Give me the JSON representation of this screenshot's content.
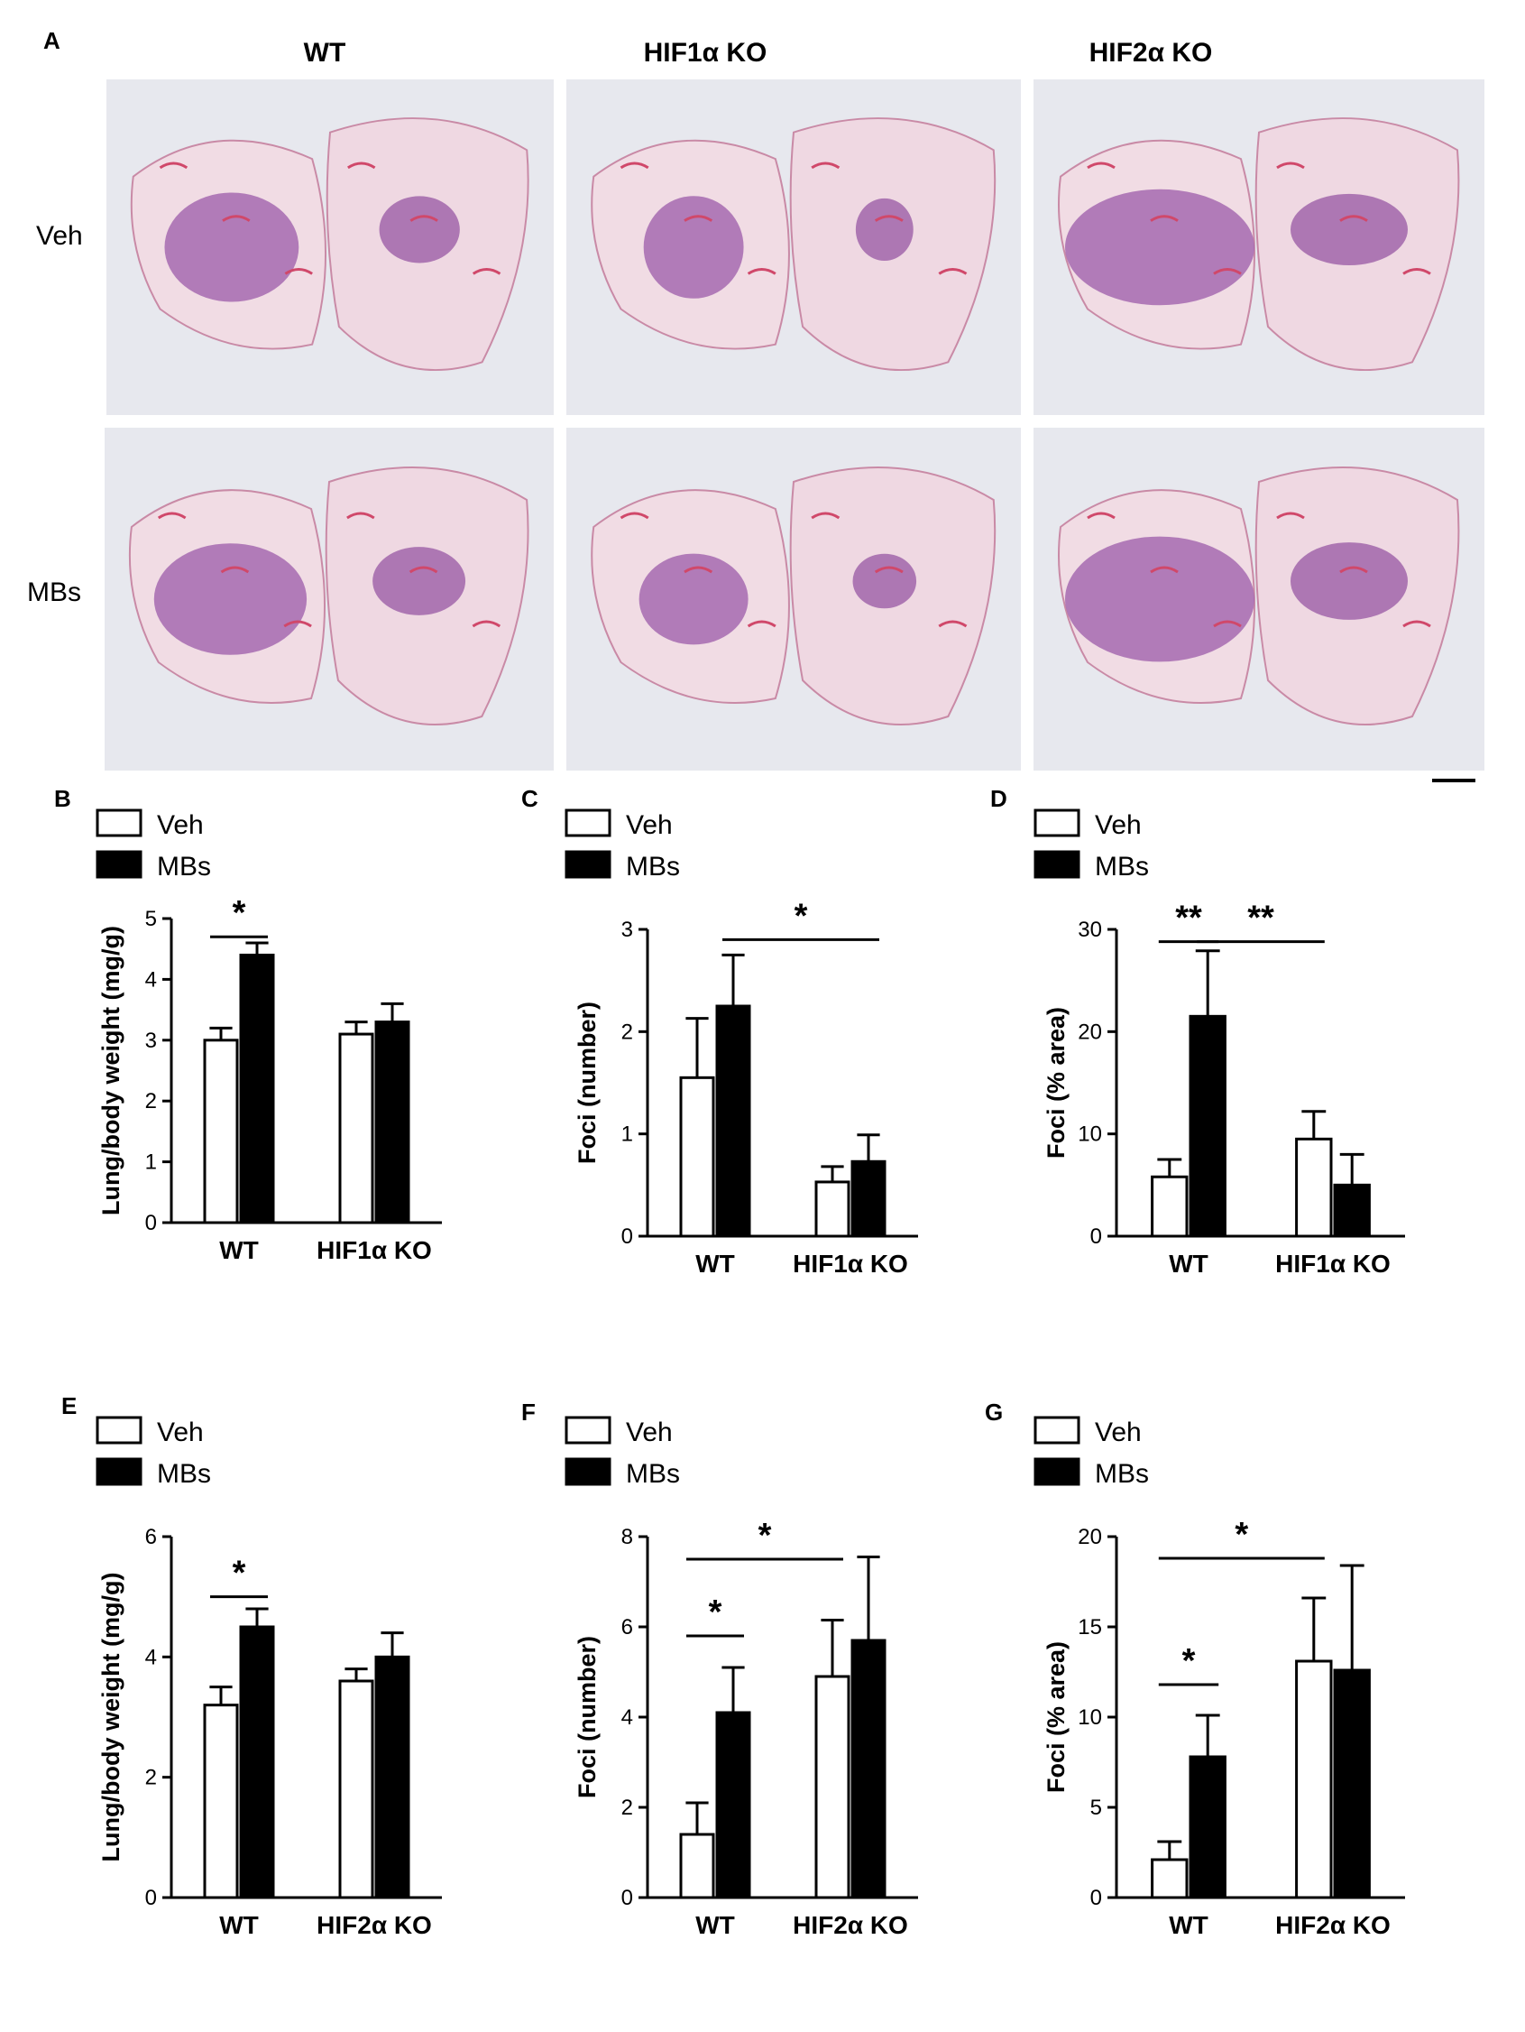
{
  "panel_a": {
    "letter": "A",
    "columns": [
      "WT",
      "HIF1α KO",
      "HIF2α KO"
    ],
    "rows": [
      "Veh",
      "MBs"
    ]
  },
  "chart_data": [
    {
      "panel": "B",
      "type": "bar",
      "categories": [
        "WT",
        "HIF1α KO"
      ],
      "series": [
        {
          "name": "Veh",
          "values": [
            3.0,
            3.1
          ],
          "errors": [
            0.2,
            0.2
          ],
          "color": "#ffffff"
        },
        {
          "name": "MBs",
          "values": [
            4.4,
            3.3
          ],
          "errors": [
            0.2,
            0.3
          ],
          "color": "#000000"
        }
      ],
      "ylabel": "Lung/body weight (mg/g)",
      "ylim": [
        0,
        5
      ],
      "yticks": [
        "0",
        "1",
        "2",
        "3",
        "4",
        "5"
      ],
      "legend": "top-left",
      "significance": [
        {
          "from": [
            0,
            0
          ],
          "to": [
            0,
            1
          ],
          "label": "*",
          "y": 4.7
        }
      ]
    },
    {
      "panel": "C",
      "type": "bar",
      "categories": [
        "WT",
        "HIF1α KO"
      ],
      "series": [
        {
          "name": "Veh",
          "values": [
            1.55,
            0.53
          ],
          "errors": [
            0.58,
            0.15
          ],
          "color": "#ffffff"
        },
        {
          "name": "MBs",
          "values": [
            2.25,
            0.73
          ],
          "errors": [
            0.5,
            0.26
          ],
          "color": "#000000"
        }
      ],
      "ylabel": "Foci (number)",
      "ylim": [
        0,
        3
      ],
      "yticks": [
        "0",
        "1",
        "2",
        "3"
      ],
      "legend": "top-left",
      "significance": [
        {
          "from": [
            0,
            1
          ],
          "to": [
            1,
            1
          ],
          "label": "*",
          "y": 2.9
        }
      ]
    },
    {
      "panel": "D",
      "type": "bar",
      "categories": [
        "WT",
        "HIF1α KO"
      ],
      "series": [
        {
          "name": "Veh",
          "values": [
            5.8,
            9.5
          ],
          "errors": [
            1.7,
            2.7
          ],
          "color": "#ffffff"
        },
        {
          "name": "MBs",
          "values": [
            21.5,
            5.0
          ],
          "errors": [
            6.4,
            3.0
          ],
          "color": "#000000"
        }
      ],
      "ylabel": "Foci (% area)",
      "ylim": [
        0,
        30
      ],
      "yticks": [
        "0",
        "10",
        "20",
        "30"
      ],
      "legend": "top-left",
      "significance": [
        {
          "from": [
            0,
            0
          ],
          "to": [
            0,
            1
          ],
          "label": "**",
          "y": 28.8
        },
        {
          "from": [
            0,
            1
          ],
          "to": [
            1,
            0
          ],
          "label": "**",
          "y": 28.8
        }
      ]
    },
    {
      "panel": "E",
      "type": "bar",
      "categories": [
        "WT",
        "HIF2α KO"
      ],
      "series": [
        {
          "name": "Veh",
          "values": [
            3.2,
            3.6
          ],
          "errors": [
            0.3,
            0.2
          ],
          "color": "#ffffff"
        },
        {
          "name": "MBs",
          "values": [
            4.5,
            4.0
          ],
          "errors": [
            0.3,
            0.4
          ],
          "color": "#000000"
        }
      ],
      "ylabel": "Lung/body weight (mg/g)",
      "ylim": [
        0,
        6
      ],
      "yticks": [
        "0",
        "2",
        "4",
        "6"
      ],
      "legend": "top-left",
      "significance": [
        {
          "from": [
            0,
            0
          ],
          "to": [
            0,
            1
          ],
          "label": "*",
          "y": 5.0
        }
      ]
    },
    {
      "panel": "F",
      "type": "bar",
      "categories": [
        "WT",
        "HIF2α KO"
      ],
      "series": [
        {
          "name": "Veh",
          "values": [
            1.4,
            4.9
          ],
          "errors": [
            0.7,
            1.25
          ],
          "color": "#ffffff"
        },
        {
          "name": "MBs",
          "values": [
            4.1,
            5.7
          ],
          "errors": [
            1.0,
            1.85
          ],
          "color": "#000000"
        }
      ],
      "ylabel": "Foci (number)",
      "ylim": [
        0,
        8
      ],
      "yticks": [
        "0",
        "2",
        "4",
        "6",
        "8"
      ],
      "legend": "top-left",
      "significance": [
        {
          "from": [
            0,
            0
          ],
          "to": [
            0,
            1
          ],
          "label": "*",
          "y": 5.8
        },
        {
          "from": [
            0,
            0
          ],
          "to": [
            1,
            0
          ],
          "label": "*",
          "y": 7.5
        }
      ]
    },
    {
      "panel": "G",
      "type": "bar",
      "categories": [
        "WT",
        "HIF2α KO"
      ],
      "series": [
        {
          "name": "Veh",
          "values": [
            2.1,
            13.1
          ],
          "errors": [
            1.0,
            3.5
          ],
          "color": "#ffffff"
        },
        {
          "name": "MBs",
          "values": [
            7.8,
            12.6
          ],
          "errors": [
            2.3,
            5.8
          ],
          "color": "#000000"
        }
      ],
      "ylabel": "Foci (% area)",
      "ylim": [
        0,
        20
      ],
      "yticks": [
        "0",
        "5",
        "10",
        "15",
        "20"
      ],
      "legend": "top-left",
      "significance": [
        {
          "from": [
            0,
            0
          ],
          "to": [
            0,
            1
          ],
          "label": "*",
          "y": 11.8
        },
        {
          "from": [
            0,
            0
          ],
          "to": [
            1,
            0
          ],
          "label": "*",
          "y": 18.8
        }
      ]
    }
  ]
}
